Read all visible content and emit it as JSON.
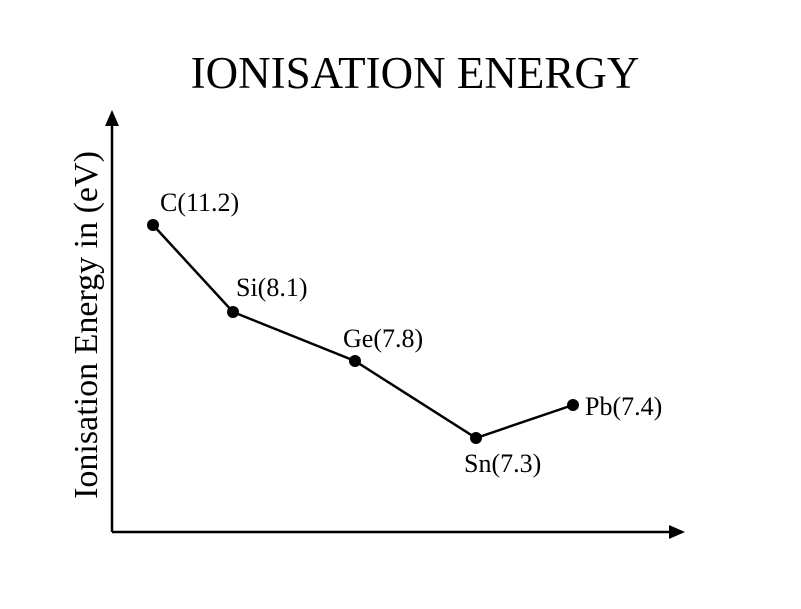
{
  "chart_data": {
    "type": "line",
    "title": "IONISATION ENERGY",
    "xlabel": "",
    "ylabel": "Ionisation Energy in (eV)",
    "grid": false,
    "legend": "none",
    "x_tick_labels": false,
    "y_tick_labels": false,
    "categories": [
      "C",
      "Si",
      "Ge",
      "Sn",
      "Pb"
    ],
    "values": [
      11.2,
      8.1,
      7.8,
      7.3,
      7.4
    ],
    "point_labels": [
      "C(11.2)",
      "Si(8.1)",
      "Ge(7.8)",
      "Sn(7.3)",
      "Pb(7.4)"
    ],
    "colors": {
      "line": "#000000",
      "axis": "#000000",
      "text": "#000000"
    }
  }
}
